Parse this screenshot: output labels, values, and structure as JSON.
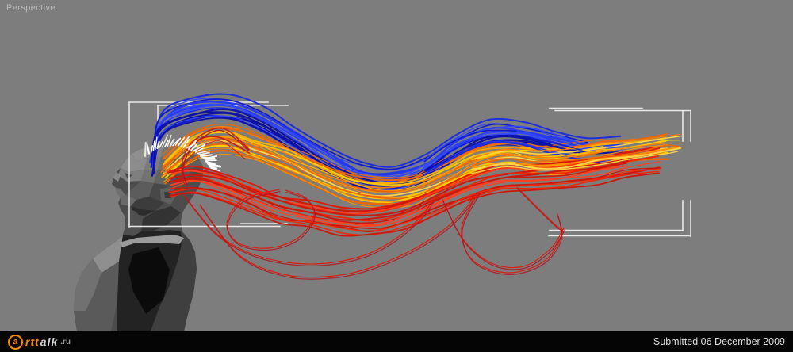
{
  "viewport": {
    "label": "Perspective"
  },
  "footer": {
    "submitted": "Submitted 06 December 2009",
    "logo": {
      "a": "a",
      "mid": "rtt",
      "tail": "alk",
      "domain": ".ru"
    }
  },
  "art": {
    "background": "#7d7d7d",
    "label_color": "#b9b9b9",
    "bracket_color": "#efefef",
    "footer_bg": "#050505",
    "palettes": {
      "blue": [
        "#0f18c8",
        "#1a2be0",
        "#2236f0",
        "#0b10a8",
        "#3348ff"
      ],
      "orange": [
        "#ff9500",
        "#ffb300",
        "#ffcf00",
        "#ff7e00",
        "#ffd94d",
        "#f06800"
      ],
      "red": [
        "#f32300",
        "#e31505",
        "#ff4020",
        "#cf1508",
        "#ff2a00"
      ],
      "darkred": [
        "#b5121f",
        "#a01220",
        "#c41a1a"
      ],
      "spike": "#ffffff"
    }
  }
}
